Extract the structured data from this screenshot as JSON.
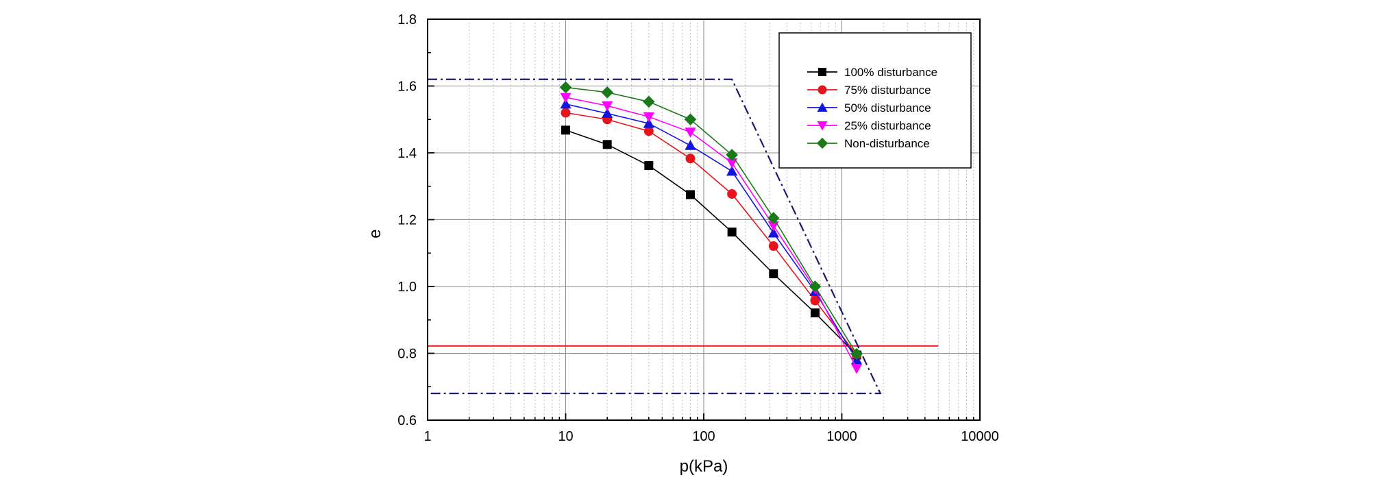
{
  "chart_data": {
    "type": "line",
    "title": "",
    "xlabel": "p(kPa)",
    "ylabel": "e",
    "x_scale": "log",
    "xlim": [
      1,
      10000
    ],
    "ylim": [
      0.6,
      1.8
    ],
    "x_ticks": [
      "1",
      "10",
      "100",
      "1000",
      "10000"
    ],
    "y_ticks": [
      "0.6",
      "0.8",
      "1.0",
      "1.2",
      "1.4",
      "1.6",
      "1.8"
    ],
    "grid": true,
    "legend_position": "top-right",
    "x": [
      10,
      20,
      40,
      80,
      160,
      320,
      640,
      1280
    ],
    "series": [
      {
        "name": "100% disturbance",
        "color": "#000000",
        "marker": "square",
        "values": [
          1.468,
          1.425,
          1.362,
          1.275,
          1.163,
          1.038,
          0.921,
          0.795
        ]
      },
      {
        "name": "75% disturbance",
        "color": "#e8141c",
        "marker": "circle",
        "values": [
          1.52,
          1.5,
          1.465,
          1.383,
          1.277,
          1.121,
          0.958,
          0.795
        ]
      },
      {
        "name": "50% disturbance",
        "color": "#1414e0",
        "marker": "triangle-up",
        "values": [
          1.546,
          1.518,
          1.488,
          1.422,
          1.345,
          1.16,
          0.985,
          0.78
        ]
      },
      {
        "name": "25% disturbance",
        "color": "#ff00ff",
        "marker": "triangle-down",
        "values": [
          1.566,
          1.541,
          1.508,
          1.462,
          1.37,
          1.182,
          0.993,
          0.755
        ]
      },
      {
        "name": "Non-disturbance",
        "color": "#1a7a1a",
        "marker": "diamond",
        "values": [
          1.596,
          1.581,
          1.553,
          1.5,
          1.394,
          1.205,
          1.0,
          0.798
        ]
      }
    ],
    "reference_lines": [
      {
        "style": "solid",
        "color": "#e8141c",
        "points": [
          [
            1,
            0.822
          ],
          [
            5000,
            0.822
          ]
        ]
      },
      {
        "style": "dash-dot",
        "color": "#1a1a70",
        "points": [
          [
            1,
            1.62
          ],
          [
            160,
            1.62
          ],
          [
            1900,
            0.68
          ],
          [
            1,
            0.68
          ]
        ]
      }
    ]
  }
}
